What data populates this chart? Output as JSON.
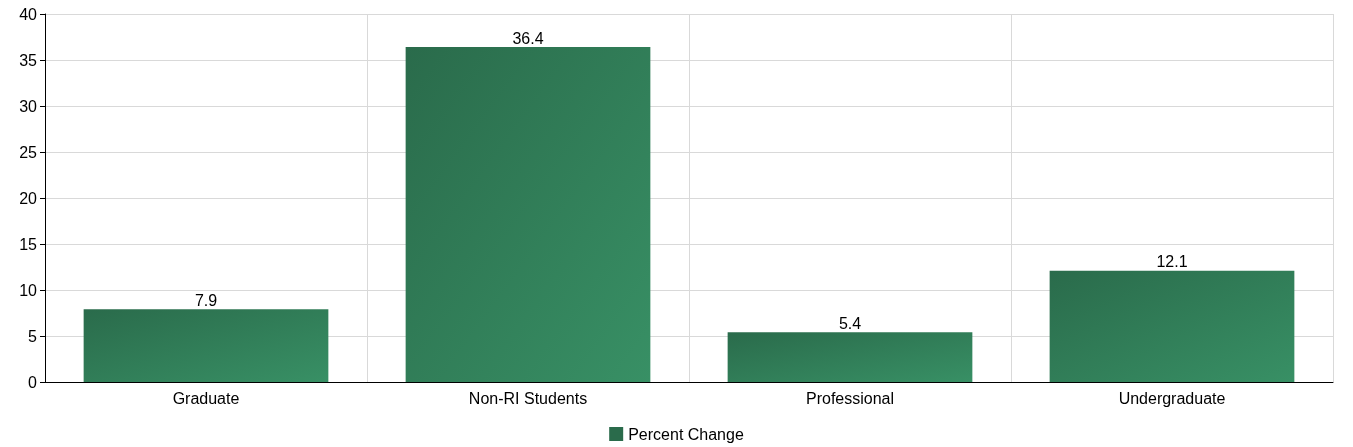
{
  "chart_data": {
    "type": "bar",
    "categories": [
      "Graduate",
      "Non-RI Students",
      "Professional",
      "Undergraduate"
    ],
    "series": [
      {
        "name": "Percent Change",
        "color": "#2a6b4b",
        "values": [
          7.9,
          36.4,
          5.4,
          12.1
        ]
      }
    ],
    "ylim": [
      0,
      40
    ],
    "yticks": [
      0,
      5,
      10,
      15,
      20,
      25,
      30,
      35,
      40
    ],
    "grid": true,
    "legend": "bottom",
    "data_labels": true
  }
}
